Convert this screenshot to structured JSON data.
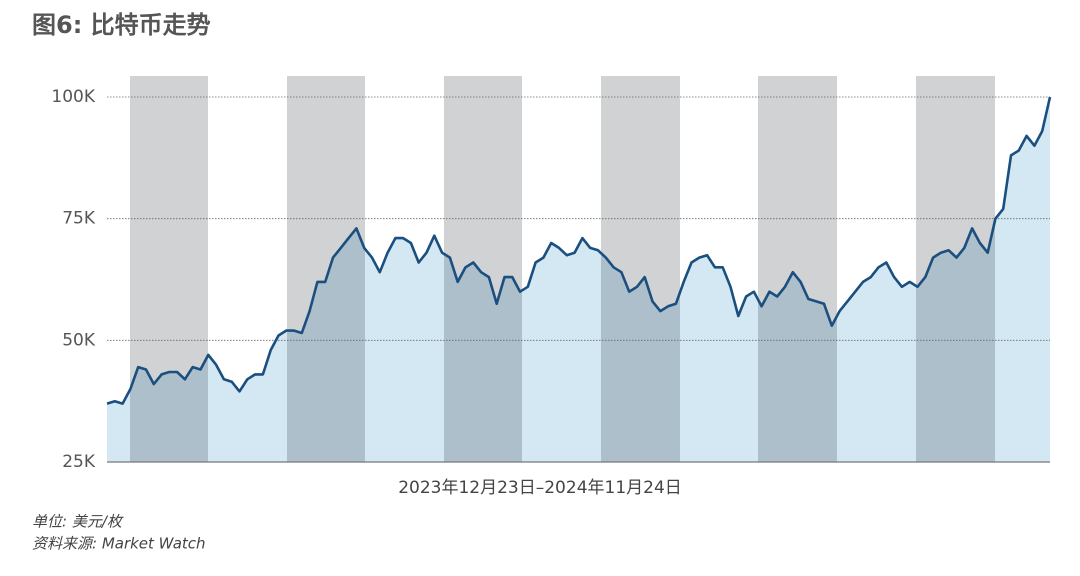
{
  "chart_data": {
    "type": "line",
    "title": "图6: 比特币走势",
    "xlabel": "2023年12月23日–2024年11月24日",
    "notes": [
      "单位: 美元/枚",
      "资料来源: Market Watch"
    ],
    "color": "#1a4f80",
    "fill_color": "#d4e8f3",
    "grid": true,
    "ylim": [
      25000,
      100000
    ],
    "yticks": [
      {
        "value": 25000,
        "label": "25K"
      },
      {
        "value": 50000,
        "label": "50K"
      },
      {
        "value": 75000,
        "label": "75K"
      },
      {
        "value": 100000,
        "label": "100K"
      }
    ],
    "values": [
      37000,
      37500,
      37000,
      40000,
      44500,
      44000,
      41000,
      43000,
      43500,
      43500,
      42000,
      44500,
      44000,
      47000,
      45000,
      42000,
      41500,
      39500,
      42000,
      43000,
      43000,
      48000,
      51000,
      52000,
      52000,
      51500,
      56000,
      62000,
      62000,
      67000,
      69000,
      71000,
      73000,
      69000,
      67000,
      64000,
      68000,
      71000,
      71000,
      70000,
      66000,
      68000,
      71500,
      68000,
      67000,
      62000,
      65000,
      66000,
      64000,
      63000,
      57500,
      63000,
      63000,
      60000,
      61000,
      66000,
      67000,
      70000,
      69000,
      67500,
      68000,
      71000,
      69000,
      68500,
      67000,
      65000,
      64000,
      60000,
      61000,
      63000,
      58000,
      56000,
      57000,
      57500,
      62000,
      66000,
      67000,
      67500,
      65000,
      65000,
      61000,
      55000,
      59000,
      60000,
      57000,
      60000,
      59000,
      61000,
      64000,
      62000,
      58500,
      58000,
      57500,
      53000,
      56000,
      58000,
      60000,
      62000,
      63000,
      65000,
      66000,
      63000,
      61000,
      62000,
      61000,
      63000,
      67000,
      68000,
      68500,
      67000,
      69000,
      73000,
      70000,
      68000,
      75000,
      77000,
      88000,
      89000,
      92000,
      90000,
      93000,
      100000
    ]
  }
}
